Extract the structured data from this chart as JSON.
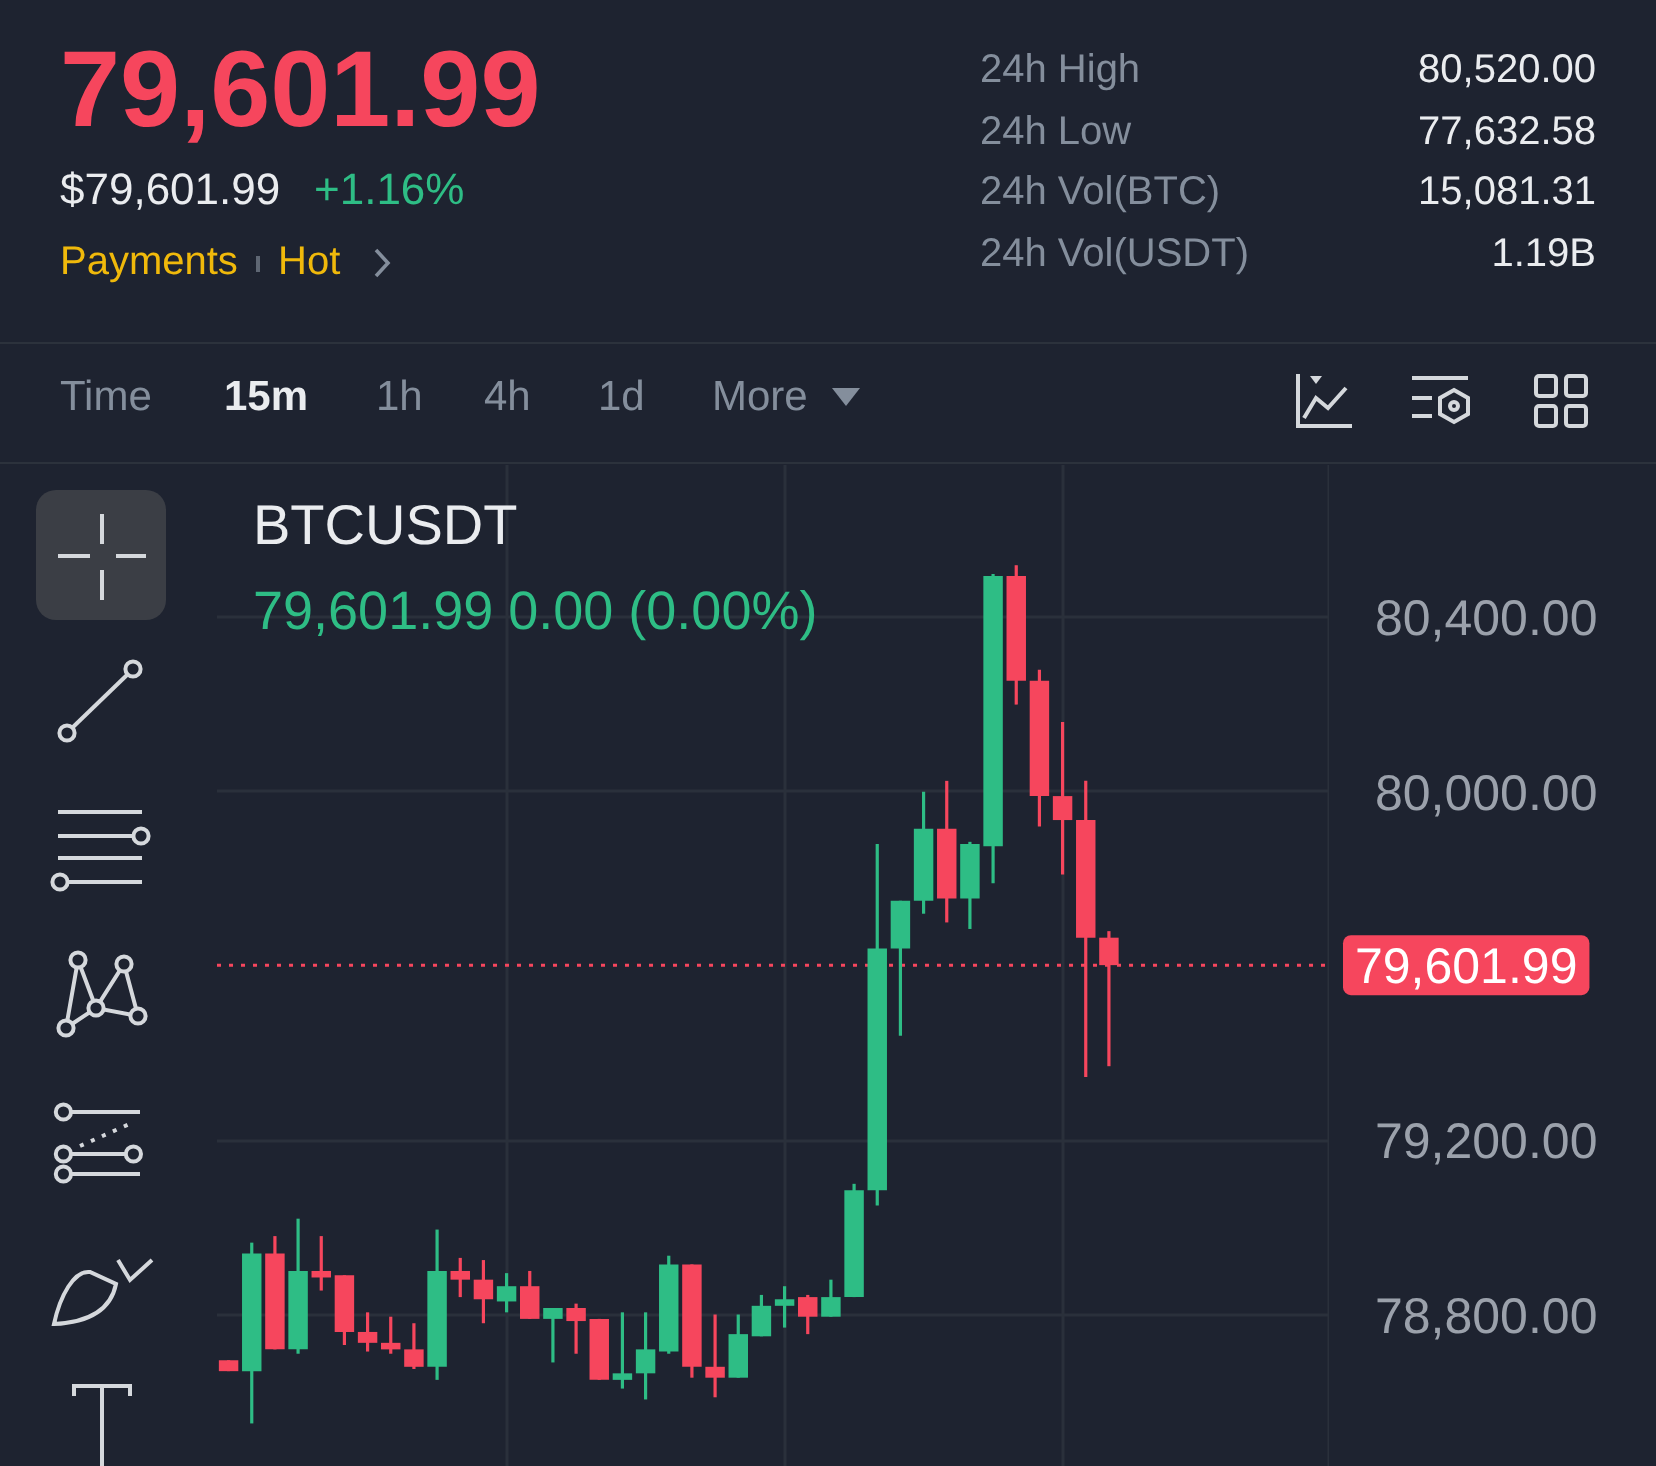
{
  "chart_data": {
    "type": "candlestick",
    "title": "BTCUSDT",
    "subtitle": "79,601.99 0.00 (0.00%)",
    "annotations": [
      "79,601.99",
      "$79,601.99",
      "+1.16%",
      "Payments",
      "Hot",
      "24h High",
      "80,520.00",
      "24h Low",
      "77,632.58",
      "24h Vol(BTC)",
      "15,081.31",
      "24h Vol(USDT)",
      "1.19B",
      "Time",
      "15m",
      "1h",
      "4h",
      "1d",
      "More"
    ],
    "categories": [
      null,
      null,
      null,
      null,
      null,
      null,
      null,
      null,
      null,
      null,
      null,
      null,
      null,
      null,
      null,
      null,
      null,
      null,
      null,
      null,
      null,
      null,
      null,
      null,
      null,
      null,
      null,
      null,
      null,
      null,
      null,
      null,
      null,
      null,
      null,
      null,
      null,
      null,
      null,
      null,
      null,
      null,
      null,
      null,
      null,
      null,
      null,
      null
    ],
    "ohlc": [
      [
        78695,
        78695,
        78670,
        78670
      ],
      [
        78670,
        78965,
        78550,
        78940
      ],
      [
        78940,
        78980,
        78720,
        78720
      ],
      [
        78720,
        79020,
        78710,
        78900
      ],
      [
        78900,
        78980,
        78855,
        78885
      ],
      [
        78890,
        78890,
        78730,
        78760
      ],
      [
        78760,
        78805,
        78715,
        78735
      ],
      [
        78735,
        78795,
        78710,
        78720
      ],
      [
        78720,
        78780,
        78675,
        78680
      ],
      [
        78680,
        78995,
        78650,
        78900
      ],
      [
        78900,
        78930,
        78840,
        78880
      ],
      [
        78880,
        78925,
        78780,
        78835
      ],
      [
        78830,
        78895,
        78805,
        78865
      ],
      [
        78865,
        78900,
        78790,
        78790
      ],
      [
        78790,
        78815,
        78690,
        78815
      ],
      [
        78815,
        78825,
        78710,
        78785
      ],
      [
        78790,
        78790,
        78650,
        78650
      ],
      [
        78650,
        78805,
        78630,
        78665
      ],
      [
        78665,
        78805,
        78605,
        78720
      ],
      [
        78715,
        78935,
        78710,
        78915
      ],
      [
        78915,
        78915,
        78655,
        78680
      ],
      [
        78680,
        78800,
        78610,
        78655
      ],
      [
        78655,
        78800,
        78655,
        78755
      ],
      [
        78750,
        78845,
        78750,
        78820
      ],
      [
        78820,
        78865,
        78770,
        78835
      ],
      [
        78840,
        78845,
        78755,
        78795
      ],
      [
        78795,
        78880,
        78795,
        78840
      ],
      [
        78840,
        79100,
        78840,
        79085
      ],
      [
        79085,
        79880,
        79050,
        79640
      ],
      [
        79640,
        79750,
        79440,
        79750
      ],
      [
        79750,
        80000,
        79720,
        79915
      ],
      [
        79915,
        80025,
        79700,
        79755
      ],
      [
        79755,
        79885,
        79685,
        79880
      ],
      [
        79875,
        80500,
        79790,
        80495
      ],
      [
        80495,
        80520,
        80200,
        80255
      ],
      [
        80255,
        80280,
        79920,
        79990
      ],
      [
        79990,
        80160,
        79810,
        79935
      ],
      [
        79935,
        80025,
        79345,
        79665
      ],
      [
        79665,
        79680,
        79370,
        79601.99
      ],
      null,
      null,
      null,
      null,
      null,
      null,
      null,
      null,
      null
    ],
    "colors": [
      "#f6465d",
      "#2ebd85",
      "#f6465d",
      "#2ebd85",
      "#f6465d",
      "#f6465d",
      "#f6465d",
      "#f6465d",
      "#f6465d",
      "#2ebd85",
      "#f6465d",
      "#f6465d",
      "#2ebd85",
      "#f6465d",
      "#2ebd85",
      "#f6465d",
      "#f6465d",
      "#2ebd85",
      "#2ebd85",
      "#2ebd85",
      "#f6465d",
      "#f6465d",
      "#2ebd85",
      "#2ebd85",
      "#2ebd85",
      "#f6465d",
      "#2ebd85",
      "#2ebd85",
      "#2ebd85",
      "#2ebd85",
      "#2ebd85",
      "#f6465d",
      "#2ebd85",
      "#2ebd85",
      "#f6465d",
      "#f6465d",
      "#f6465d",
      "#f6465d",
      "#f6465d",
      null,
      null,
      null,
      null,
      null,
      null,
      null,
      null,
      null
    ],
    "ylim": [
      78450,
      80750
    ],
    "yticks": [
      {
        "value": 78800,
        "label": "78,800.00"
      },
      {
        "value": 79200,
        "label": "79,200.00"
      },
      {
        "value": 80000,
        "label": "80,000.00"
      },
      {
        "value": 80400,
        "label": "80,400.00"
      }
    ],
    "ref_lines": [
      {
        "axis": "y",
        "value": 79601.99,
        "label": "79,601.99",
        "color": "#f6465d",
        "line_style": "dotted"
      }
    ],
    "grid": true,
    "tick_labels": "y"
  }
}
